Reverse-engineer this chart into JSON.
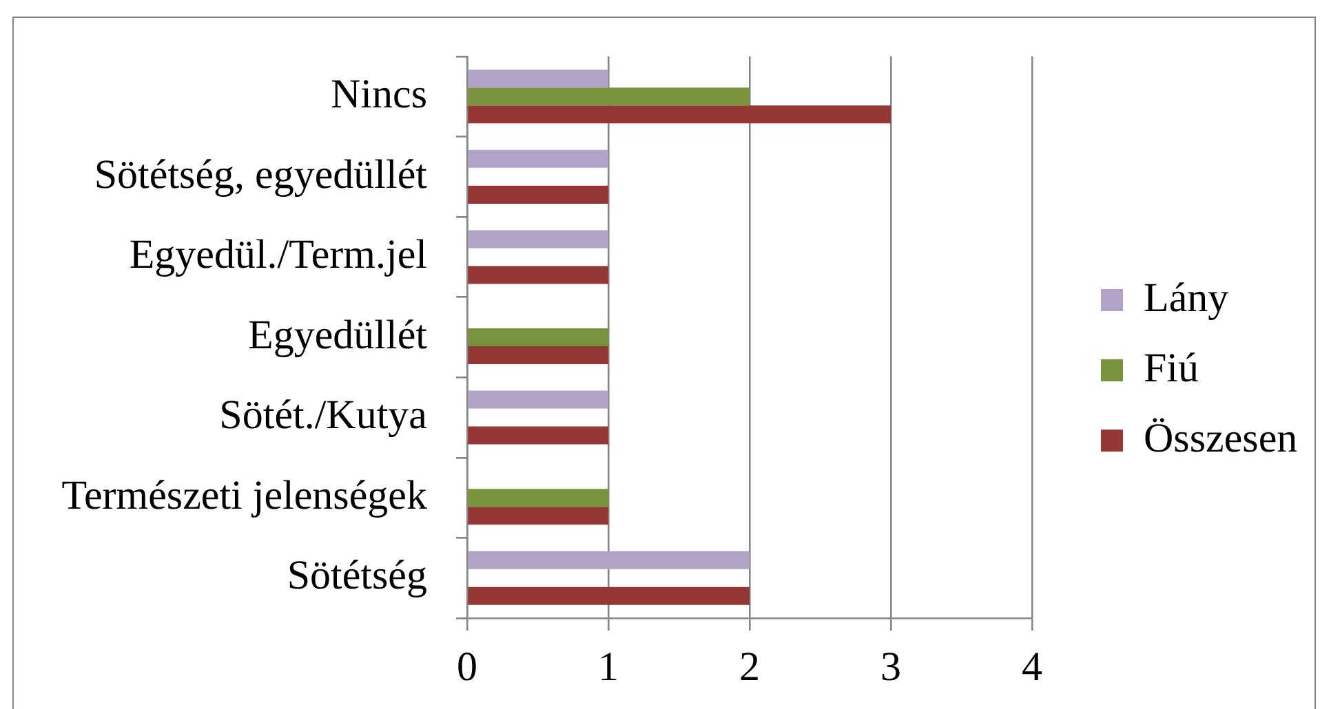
{
  "chart_data": {
    "type": "bar",
    "orientation": "horizontal",
    "categories": [
      "Nincs",
      "Sötétség, egyedüllét",
      "Egyedül./Term.jel",
      "Egyedüllét",
      "Sötét./Kutya",
      "Természeti jelenségek",
      "Sötétség"
    ],
    "series": [
      {
        "name": "Lány",
        "color": "#b3a2c7",
        "values": [
          1,
          1,
          1,
          null,
          1,
          null,
          2
        ]
      },
      {
        "name": "Fiú",
        "color": "#77933c",
        "values": [
          2,
          null,
          null,
          1,
          null,
          1,
          null
        ]
      },
      {
        "name": "Összesen",
        "color": "#953735",
        "values": [
          3,
          1,
          1,
          1,
          1,
          1,
          2
        ]
      }
    ],
    "xlim": [
      0,
      4
    ],
    "xticks": [
      0,
      1,
      2,
      3,
      4
    ],
    "grid": "x",
    "legend": "right"
  }
}
